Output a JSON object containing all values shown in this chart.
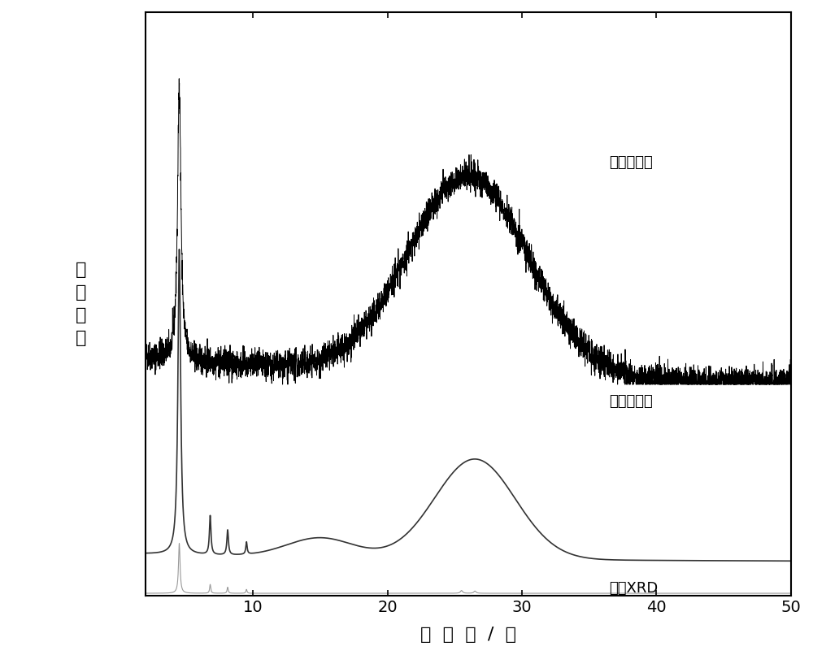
{
  "xlim": [
    2,
    50
  ],
  "ylim": [
    0,
    1.05
  ],
  "xlabel": "袆射角/度",
  "ylabel_chars": [
    "袆",
    "射",
    "强",
    "度"
  ],
  "label_2d": "二维纳米片",
  "label_layer": "层状前驱体",
  "label_sim": "模拟XRD",
  "background_color": "#ffffff",
  "line_color_2d": "#000000",
  "line_color_layer": "#333333",
  "line_color_sim": "#999999",
  "xticks": [
    10,
    20,
    30,
    40,
    50
  ],
  "xtick_labels": [
    "10",
    "20",
    "30",
    "40",
    "50"
  ]
}
